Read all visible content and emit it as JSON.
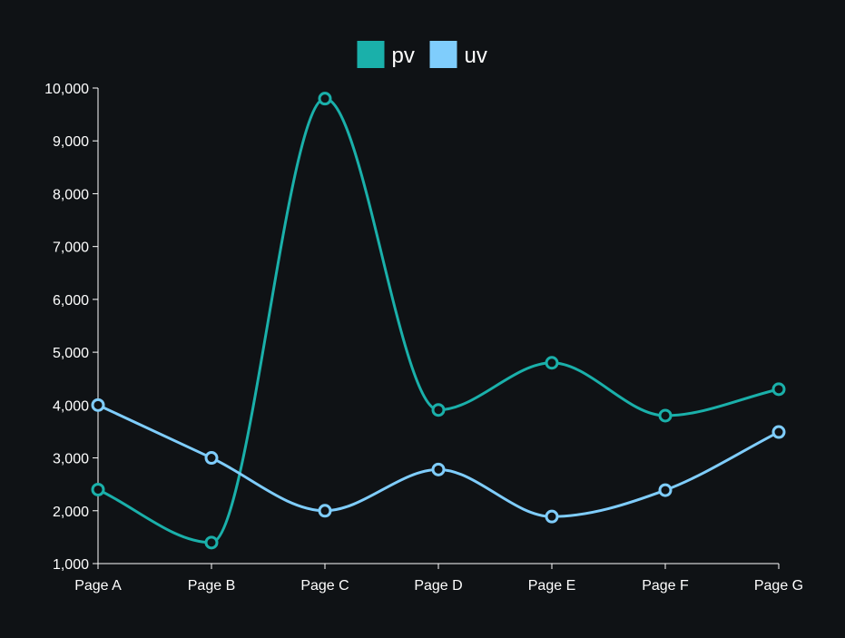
{
  "chart_data": {
    "type": "line",
    "categories": [
      "Page A",
      "Page B",
      "Page C",
      "Page D",
      "Page E",
      "Page F",
      "Page G"
    ],
    "series": [
      {
        "name": "pv",
        "values": [
          2400,
          1398,
          9800,
          3908,
          4800,
          3800,
          4300
        ],
        "color": "#1ab0aa"
      },
      {
        "name": "uv",
        "values": [
          4000,
          3000,
          2000,
          2780,
          1890,
          2390,
          3490
        ],
        "color": "#7fcdfc"
      }
    ],
    "ylim": [
      1000,
      10000
    ],
    "yticks": [
      "1,000",
      "2,000",
      "3,000",
      "4,000",
      "5,000",
      "6,000",
      "7,000",
      "8,000",
      "9,000",
      "10,000"
    ],
    "ytick_values": [
      1000,
      2000,
      3000,
      4000,
      5000,
      6000,
      7000,
      8000,
      9000,
      10000
    ],
    "legend_position": "top-center",
    "grid": false,
    "background": "#0f1215",
    "axis_color": "#ffffff",
    "title": "",
    "xlabel": "",
    "ylabel": ""
  }
}
